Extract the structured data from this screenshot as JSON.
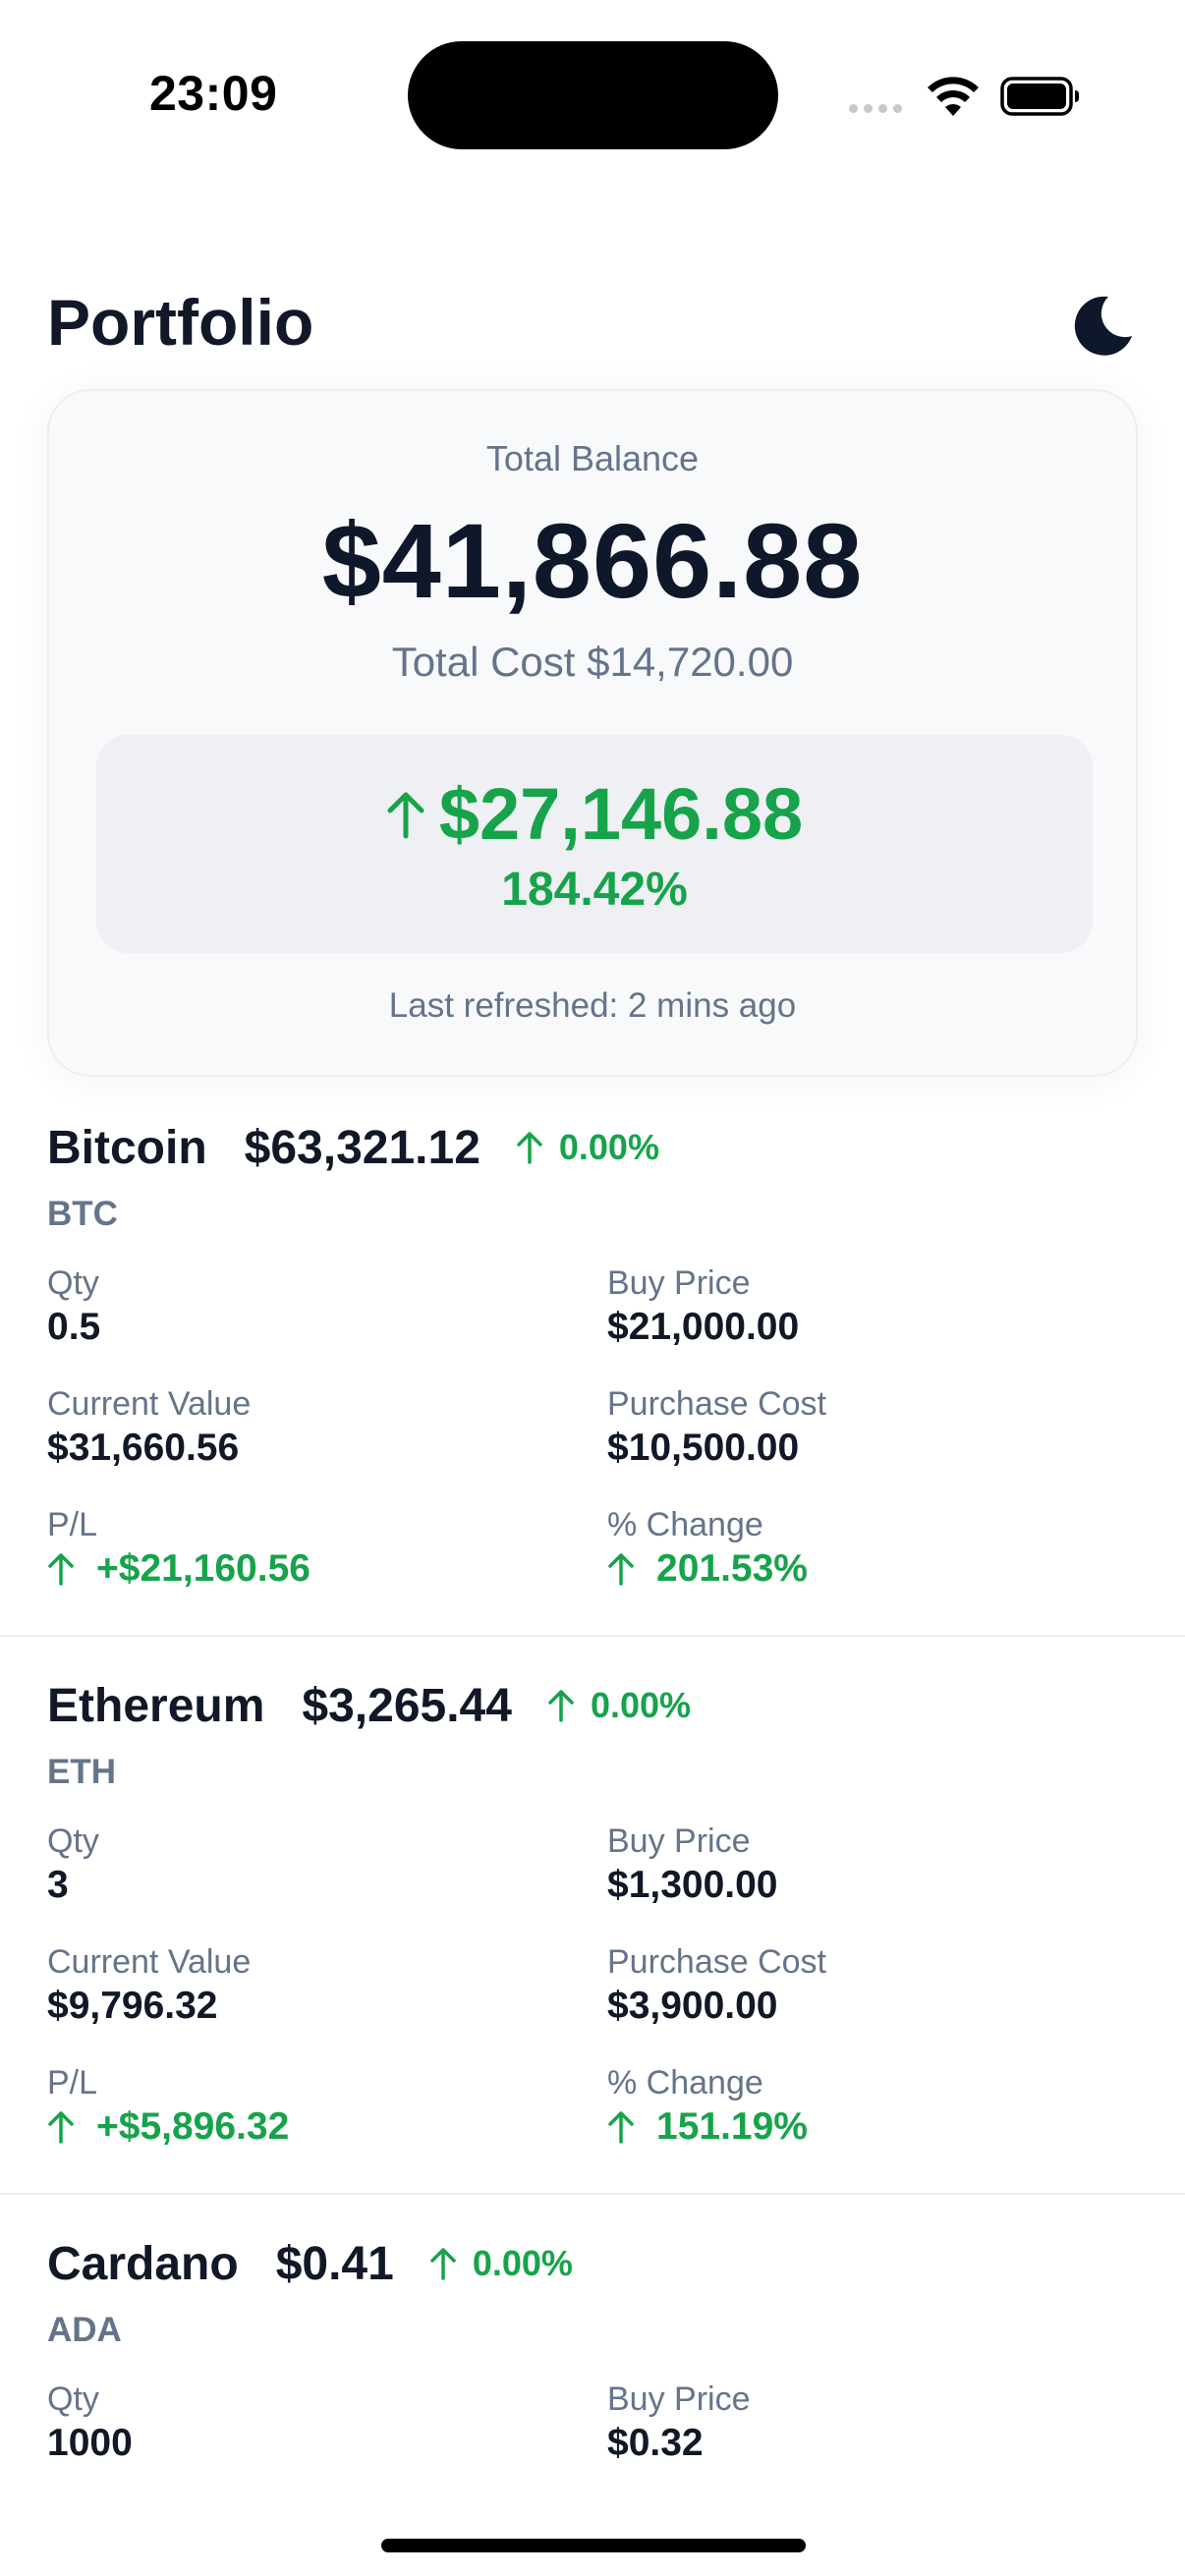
{
  "status_bar": {
    "time": "23:09"
  },
  "header": {
    "title": "Portfolio",
    "theme_icon": "moon-icon"
  },
  "summary": {
    "balance_label": "Total Balance",
    "balance_value": "$41,866.88",
    "total_cost": "Total Cost $14,720.00",
    "pl_amount": "$27,146.88",
    "pl_percent": "184.42%",
    "pl_direction_icon": "arrow-up-icon",
    "last_refreshed": "Last refreshed: 2 mins ago"
  },
  "holdings": [
    {
      "name": "Bitcoin",
      "price": "$63,321.12",
      "change": "0.00%",
      "symbol": "BTC",
      "qty_label": "Qty",
      "qty": "0.5",
      "buy_price_label": "Buy Price",
      "buy_price": "$21,000.00",
      "current_value_label": "Current Value",
      "current_value": "$31,660.56",
      "purchase_cost_label": "Purchase Cost",
      "purchase_cost": "$10,500.00",
      "pl_label": "P/L",
      "pl": "+$21,160.56",
      "pct_change_label": "% Change",
      "pct_change": "201.53%"
    },
    {
      "name": "Ethereum",
      "price": "$3,265.44",
      "change": "0.00%",
      "symbol": "ETH",
      "qty_label": "Qty",
      "qty": "3",
      "buy_price_label": "Buy Price",
      "buy_price": "$1,300.00",
      "current_value_label": "Current Value",
      "current_value": "$9,796.32",
      "purchase_cost_label": "Purchase Cost",
      "purchase_cost": "$3,900.00",
      "pl_label": "P/L",
      "pl": "+$5,896.32",
      "pct_change_label": "% Change",
      "pct_change": "151.19%"
    },
    {
      "name": "Cardano",
      "price": "$0.41",
      "change": "0.00%",
      "symbol": "ADA",
      "qty_label": "Qty",
      "qty": "1000",
      "buy_price_label": "Buy Price",
      "buy_price": "$0.32"
    }
  ],
  "colors": {
    "positive": "#16a34a",
    "text_primary": "#111827",
    "text_secondary": "#64748b",
    "card_bg": "#f8f9fb",
    "pl_box_bg": "#eef0f3"
  }
}
